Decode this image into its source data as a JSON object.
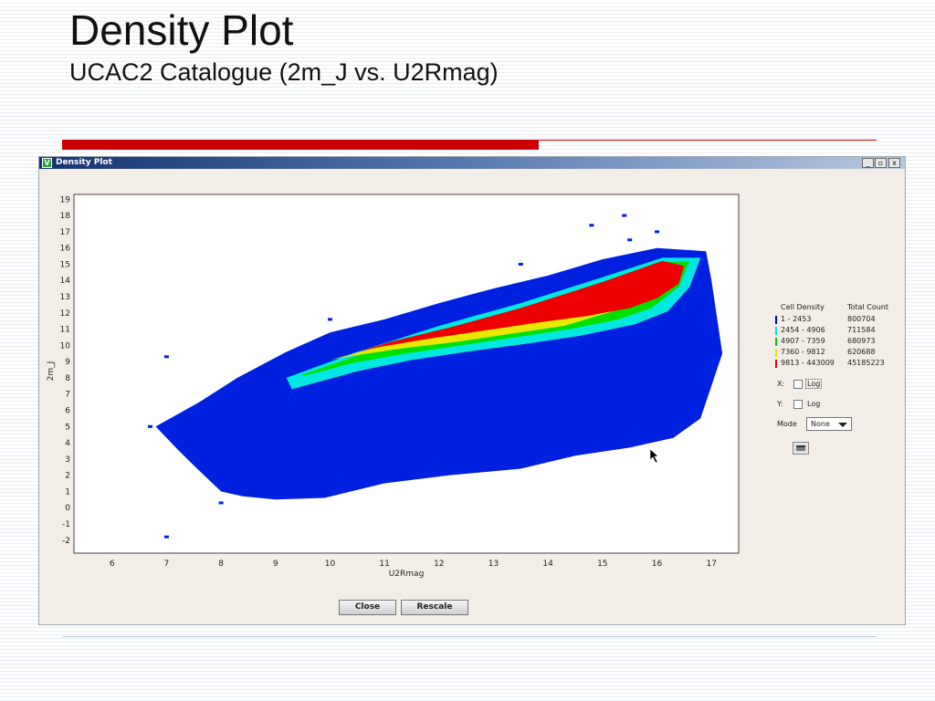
{
  "slide": {
    "title": "Density Plot",
    "subtitle": "UCAC2 Catalogue (2m_J vs. U2Rmag)"
  },
  "window": {
    "title": "Density Plot",
    "app_icon_letter": "V",
    "controls": [
      "_",
      "▫",
      "x"
    ]
  },
  "chart_data": {
    "type": "heatmap",
    "xlabel": "U2Rmag",
    "ylabel": "2m_J",
    "xlim": [
      5.3,
      17.5
    ],
    "ylim": [
      -2.8,
      19.3
    ],
    "xticks": [
      6,
      7,
      8,
      9,
      10,
      11,
      12,
      13,
      14,
      15,
      16,
      17
    ],
    "yticks": [
      19,
      18,
      17,
      16,
      15,
      14,
      13,
      12,
      11,
      10,
      9,
      8,
      7,
      6,
      5,
      4,
      3,
      2,
      1,
      0,
      -1,
      -2
    ],
    "colors": {
      "bin1": "#0020e0",
      "bin2": "#00e8e0",
      "bin3": "#00e000",
      "bin4": "#e8e800",
      "bin5": "#ee0000"
    },
    "regions": [
      {
        "bin": "bin1",
        "points": [
          [
            8.0,
            1.0
          ],
          [
            8.4,
            0.7
          ],
          [
            9.0,
            0.5
          ],
          [
            9.9,
            0.6
          ],
          [
            11.0,
            1.5
          ],
          [
            12.2,
            2.0
          ],
          [
            13.5,
            2.4
          ],
          [
            14.5,
            3.2
          ],
          [
            15.5,
            3.7
          ],
          [
            16.3,
            4.3
          ],
          [
            16.8,
            5.5
          ],
          [
            17.2,
            9.5
          ],
          [
            17.0,
            14.0
          ],
          [
            16.9,
            15.8
          ],
          [
            16.0,
            16.0
          ],
          [
            15.0,
            15.3
          ],
          [
            14.0,
            14.3
          ],
          [
            13.0,
            13.5
          ],
          [
            12.0,
            12.6
          ],
          [
            11.0,
            11.6
          ],
          [
            10.0,
            10.8
          ],
          [
            9.2,
            9.6
          ],
          [
            8.3,
            8.0
          ],
          [
            7.6,
            6.5
          ],
          [
            6.8,
            5.0
          ],
          [
            7.2,
            3.6
          ],
          [
            7.5,
            2.6
          ]
        ]
      },
      {
        "bin": "bin2",
        "points": [
          [
            9.2,
            8.0
          ],
          [
            10.5,
            9.6
          ],
          [
            12.0,
            11.2
          ],
          [
            13.5,
            12.6
          ],
          [
            15.0,
            14.2
          ],
          [
            16.1,
            15.4
          ],
          [
            16.8,
            15.4
          ],
          [
            16.6,
            13.6
          ],
          [
            16.2,
            12.1
          ],
          [
            15.6,
            11.3
          ],
          [
            14.6,
            10.6
          ],
          [
            13.6,
            10.1
          ],
          [
            12.5,
            9.6
          ],
          [
            11.5,
            9.1
          ],
          [
            10.5,
            8.4
          ],
          [
            9.3,
            7.3
          ]
        ]
      },
      {
        "bin": "bin3",
        "points": [
          [
            9.5,
            8.2
          ],
          [
            10.7,
            9.6
          ],
          [
            12.1,
            10.9
          ],
          [
            13.5,
            12.3
          ],
          [
            15.0,
            13.9
          ],
          [
            16.0,
            15.1
          ],
          [
            16.6,
            15.2
          ],
          [
            16.4,
            13.6
          ],
          [
            15.9,
            12.3
          ],
          [
            15.3,
            11.6
          ],
          [
            14.4,
            11.0
          ],
          [
            13.4,
            10.5
          ],
          [
            12.4,
            10.0
          ],
          [
            11.4,
            9.5
          ],
          [
            10.4,
            8.9
          ],
          [
            9.5,
            8.1
          ]
        ]
      },
      {
        "bin": "bin4",
        "points": [
          [
            10.0,
            9.1
          ],
          [
            11.0,
            10.0
          ],
          [
            12.2,
            10.9
          ],
          [
            13.5,
            12.2
          ],
          [
            15.0,
            13.8
          ],
          [
            16.0,
            15.0
          ],
          [
            16.4,
            14.8
          ],
          [
            15.7,
            12.6
          ],
          [
            14.3,
            11.2
          ],
          [
            13.3,
            10.7
          ],
          [
            12.3,
            10.2
          ],
          [
            11.3,
            9.8
          ],
          [
            10.3,
            9.3
          ]
        ]
      },
      {
        "bin": "bin5",
        "points": [
          [
            10.5,
            9.6
          ],
          [
            11.1,
            10.2
          ],
          [
            12.2,
            11.1
          ],
          [
            13.5,
            12.3
          ],
          [
            15.0,
            13.9
          ],
          [
            16.1,
            15.2
          ],
          [
            16.5,
            14.9
          ],
          [
            16.4,
            13.8
          ],
          [
            16.0,
            12.9
          ],
          [
            15.5,
            12.3
          ],
          [
            14.7,
            11.8
          ],
          [
            13.8,
            11.4
          ],
          [
            12.8,
            10.9
          ],
          [
            11.8,
            10.4
          ],
          [
            10.9,
            9.9
          ]
        ]
      }
    ],
    "outliers": [
      [
        7.0,
        -1.8
      ],
      [
        7.0,
        9.3
      ],
      [
        8.0,
        0.3
      ],
      [
        6.7,
        5.0
      ],
      [
        9.2,
        3.1
      ],
      [
        15.5,
        16.5
      ],
      [
        14.8,
        17.4
      ],
      [
        15.4,
        18.0
      ],
      [
        16.0,
        17.0
      ],
      [
        10.4,
        11.0
      ],
      [
        10.0,
        11.6
      ],
      [
        13.5,
        15.0
      ]
    ]
  },
  "legend": {
    "col1_header": "Cell Density",
    "col2_header": "Total Count",
    "rows": [
      {
        "color": "#0000c0",
        "range": "1 - 2453",
        "count": "800704"
      },
      {
        "color": "#00e8e0",
        "range": "2454 - 4906",
        "count": "711584"
      },
      {
        "color": "#00cc00",
        "range": "4907 - 7359",
        "count": "680973"
      },
      {
        "color": "#e8e800",
        "range": "7360 - 9812",
        "count": "620688"
      },
      {
        "color": "#ee0000",
        "range": "9813 - 443009",
        "count": "45185223"
      }
    ]
  },
  "controls": {
    "x_label": "X:",
    "y_label": "Y:",
    "log_label": "Log",
    "mode_label": "Mode",
    "mode_value": "None",
    "print_icon": "printer-icon"
  },
  "buttons": {
    "close": "Close",
    "rescale": "Rescale"
  }
}
